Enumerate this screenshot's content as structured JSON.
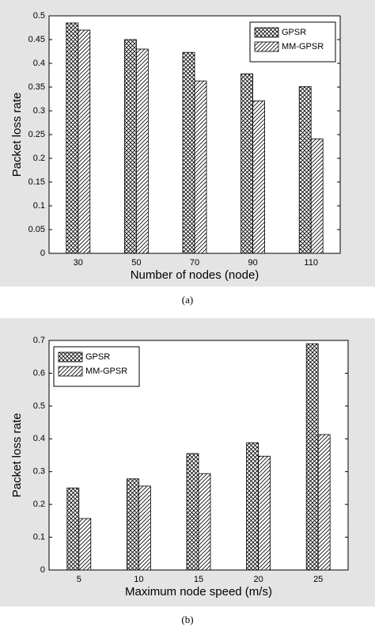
{
  "chart_data": [
    {
      "type": "bar",
      "caption": "(a)",
      "xlabel": "Number of nodes (node)",
      "ylabel": "Packet loss rate",
      "categories": [
        "30",
        "50",
        "70",
        "90",
        "110"
      ],
      "series": [
        {
          "name": "GPSR",
          "color": "#000000",
          "pattern": "crosshatch",
          "values": [
            0.485,
            0.45,
            0.423,
            0.378,
            0.351
          ]
        },
        {
          "name": "MM-GPSR",
          "color": "#000000",
          "pattern": "diagonal",
          "values": [
            0.47,
            0.43,
            0.363,
            0.321,
            0.241
          ]
        }
      ],
      "ylim": [
        0,
        0.5
      ],
      "yticks": [
        0,
        0.05,
        0.1,
        0.15,
        0.2,
        0.25,
        0.3,
        0.35,
        0.4,
        0.45,
        0.5
      ],
      "legend": "upper right"
    },
    {
      "type": "bar",
      "caption": "(b)",
      "xlabel": "Maximum node speed (m/s)",
      "ylabel": "Packet loss rate",
      "categories": [
        "5",
        "10",
        "15",
        "20",
        "25"
      ],
      "series": [
        {
          "name": "GPSR",
          "color": "#000000",
          "pattern": "crosshatch",
          "values": [
            0.25,
            0.278,
            0.355,
            0.388,
            0.69
          ]
        },
        {
          "name": "MM-GPSR",
          "color": "#000000",
          "pattern": "diagonal",
          "values": [
            0.157,
            0.256,
            0.294,
            0.347,
            0.413
          ]
        }
      ],
      "ylim": [
        0,
        0.7
      ],
      "yticks": [
        0,
        0.1,
        0.2,
        0.3,
        0.4,
        0.5,
        0.6,
        0.7
      ],
      "legend": "upper left"
    }
  ]
}
